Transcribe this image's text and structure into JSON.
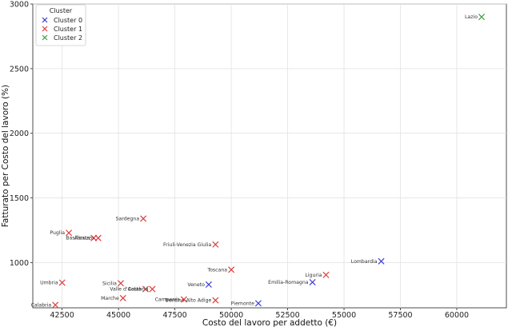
{
  "chart_data": {
    "type": "scatter",
    "xlabel": "Costo del lavoro per addetto (€)",
    "ylabel": "Fatturato per Costo del lavoro (%)",
    "xlim": [
      41200,
      62200
    ],
    "ylim": [
      650,
      3000
    ],
    "xticks": [
      "42500",
      "45000",
      "47500",
      "50000",
      "52500",
      "55000",
      "57500",
      "60000"
    ],
    "yticks": [
      "1000",
      "1500",
      "2000",
      "2500",
      "3000"
    ],
    "grid": true,
    "legend": {
      "title": "Cluster",
      "placement": "top-left"
    },
    "series": [
      {
        "name": "Cluster 0",
        "color": "#3a3ad6",
        "points": [
          {
            "label": "Lombardia",
            "x": 56650,
            "y": 1010
          },
          {
            "label": "Emilia-Romagna",
            "x": 53600,
            "y": 848
          },
          {
            "label": "Veneto",
            "x": 49000,
            "y": 830
          },
          {
            "label": "Piemonte",
            "x": 51200,
            "y": 685
          }
        ]
      },
      {
        "name": "Cluster 1",
        "color": "#e03b3b",
        "points": [
          {
            "label": "Sardegna",
            "x": 46100,
            "y": 1340
          },
          {
            "label": "Puglia",
            "x": 42800,
            "y": 1230
          },
          {
            "label": "Basilicata",
            "x": 43900,
            "y": 1190
          },
          {
            "label": "Abruzzo",
            "x": 44100,
            "y": 1190
          },
          {
            "label": "Friuli-Venezia Giulia",
            "x": 49300,
            "y": 1140
          },
          {
            "label": "Toscana",
            "x": 50000,
            "y": 945
          },
          {
            "label": "Liguria",
            "x": 54200,
            "y": 905
          },
          {
            "label": "Umbria",
            "x": 42500,
            "y": 845
          },
          {
            "label": "Sicilia",
            "x": 45100,
            "y": 840
          },
          {
            "label": "Valle d'Aosta",
            "x": 46200,
            "y": 795
          },
          {
            "label": "Calabria",
            "x": 46500,
            "y": 795
          },
          {
            "label": "Marche",
            "x": 45200,
            "y": 725
          },
          {
            "label": "Campania",
            "x": 47900,
            "y": 715
          },
          {
            "label": "Trentino-Alto Adige",
            "x": 49300,
            "y": 708
          },
          {
            "label": "Calabria",
            "x": 42200,
            "y": 672
          }
        ]
      },
      {
        "name": "Cluster 2",
        "color": "#3f9e3f",
        "points": [
          {
            "label": "Lazio",
            "x": 61100,
            "y": 2900
          }
        ]
      }
    ]
  }
}
